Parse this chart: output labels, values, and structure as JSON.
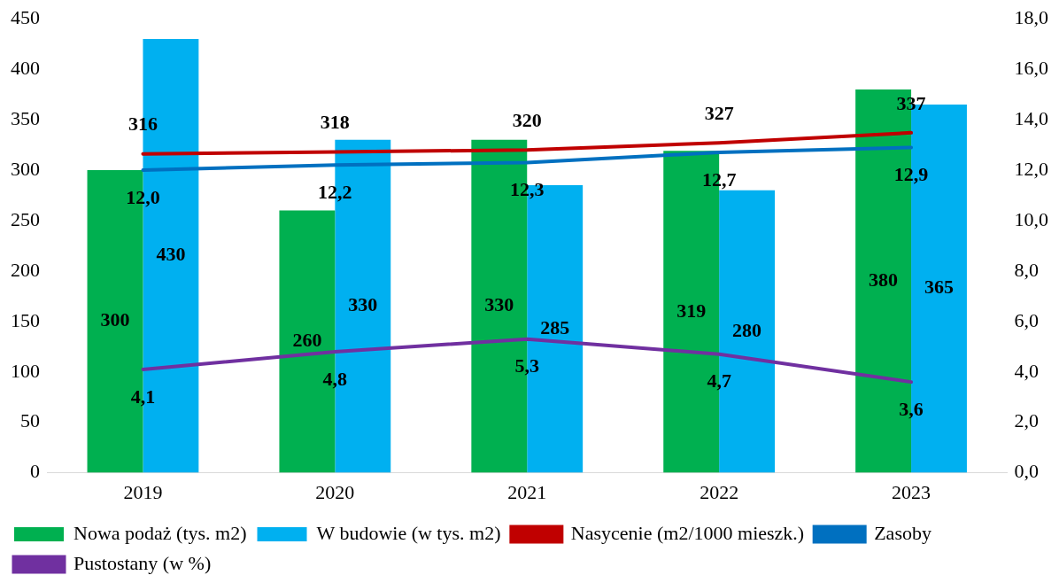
{
  "chart_data": {
    "type": "bar",
    "categories": [
      "2019",
      "2020",
      "2021",
      "2022",
      "2023"
    ],
    "series": [
      {
        "name": "Nowa podaż (tys. m2)",
        "color": "#00b050",
        "values": [
          300,
          260,
          330,
          319,
          380
        ]
      },
      {
        "name": "W budowie (w tys. m2)",
        "color": "#00b0f0",
        "values": [
          430,
          330,
          285,
          280,
          365
        ]
      },
      {
        "name": "Nasycenie (m2/1000 mieszk.)",
        "type": "line",
        "color": "#c00000",
        "values": [
          316,
          318,
          320,
          327,
          337
        ]
      },
      {
        "name": "Zasoby",
        "type": "line",
        "axis": "y2",
        "color": "#0070c0",
        "values": [
          12.0,
          12.2,
          12.3,
          12.7,
          12.9
        ],
        "value_labels": [
          "12,0",
          "12,2",
          "12,3",
          "12,7",
          "12,9"
        ]
      },
      {
        "name": "Pustostany (w %)",
        "type": "line",
        "axis": "y2",
        "color": "#7030a0",
        "values": [
          4.1,
          4.8,
          5.3,
          4.7,
          3.6
        ],
        "value_labels": [
          "4,1",
          "4,8",
          "5,3",
          "4,7",
          "3,6"
        ]
      }
    ],
    "ylim": [
      0,
      450
    ],
    "yticks": [
      0,
      50,
      100,
      150,
      200,
      250,
      300,
      350,
      400,
      450
    ],
    "y2lim": [
      0,
      18
    ],
    "y2ticks": [
      {
        "value": 0,
        "label": "0,0"
      },
      {
        "value": 2,
        "label": "2,0"
      },
      {
        "value": 4,
        "label": "4,0"
      },
      {
        "value": 6,
        "label": "6,0"
      },
      {
        "value": 8,
        "label": "8,0"
      },
      {
        "value": 10,
        "label": "10,0"
      },
      {
        "value": 12,
        "label": "12,0"
      },
      {
        "value": 14,
        "label": "14,0"
      },
      {
        "value": 16,
        "label": "16,0"
      },
      {
        "value": 18,
        "label": "18,0"
      }
    ],
    "data_labels": true,
    "grid": false,
    "legend": "bottom",
    "marker": "none",
    "line_style": "solid"
  }
}
